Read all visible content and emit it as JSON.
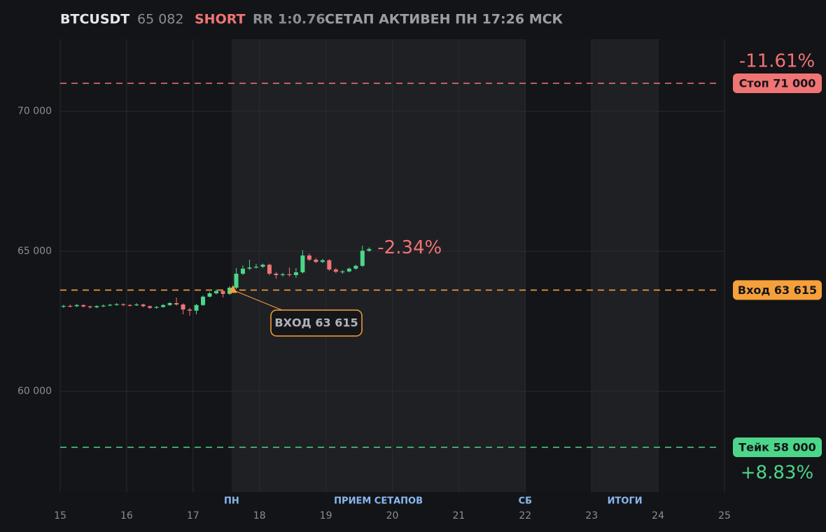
{
  "chart_data": {
    "type": "candlestick",
    "header": {
      "symbol": "BTCUSDT",
      "price": "65 082",
      "side": "SHORT",
      "rr": "RR 1:0.76",
      "status": "СЕТАП АКТИВЕН ПН 17:26 МСК"
    },
    "x": [
      15.05,
      15.15,
      15.25,
      15.35,
      15.45,
      15.55,
      15.65,
      15.75,
      15.85,
      15.95,
      16.05,
      16.15,
      16.25,
      16.35,
      16.45,
      16.55,
      16.65,
      16.75,
      16.85,
      16.95,
      17.05,
      17.15,
      17.25,
      17.35,
      17.45,
      17.55,
      17.65,
      17.75,
      17.85,
      17.95,
      18.05,
      18.15,
      18.25,
      18.35,
      18.45,
      18.55,
      18.65,
      18.75,
      18.85,
      18.95,
      19.05,
      19.15,
      19.25,
      19.35,
      19.45,
      19.55,
      19.65
    ],
    "open": [
      63020,
      63050,
      63040,
      63080,
      63030,
      63000,
      63040,
      63060,
      63090,
      63110,
      63080,
      63070,
      63100,
      63040,
      62980,
      63010,
      63080,
      63150,
      63100,
      62920,
      62880,
      63080,
      63380,
      63500,
      63580,
      63480,
      63700,
      64200,
      64380,
      64420,
      64450,
      64520,
      64200,
      64150,
      64180,
      64150,
      64250,
      64850,
      64700,
      64620,
      64680,
      64350,
      64270,
      64280,
      64380,
      64480,
      65020
    ],
    "high": [
      63090,
      63100,
      63120,
      63100,
      63060,
      63070,
      63100,
      63130,
      63150,
      63140,
      63120,
      63150,
      63130,
      63060,
      63050,
      63110,
      63180,
      63350,
      63140,
      62980,
      63120,
      63420,
      63560,
      63640,
      63620,
      63760,
      64400,
      64500,
      64700,
      64550,
      64560,
      64560,
      64260,
      64230,
      64420,
      64400,
      65040,
      64920,
      64760,
      64730,
      64720,
      64400,
      64330,
      64420,
      64520,
      65200,
      65140
    ],
    "low": [
      62980,
      63000,
      63010,
      62990,
      62950,
      62970,
      63010,
      63040,
      63060,
      63040,
      63030,
      63050,
      63000,
      62940,
      62950,
      62990,
      63050,
      63060,
      62750,
      62700,
      62750,
      63050,
      63350,
      63460,
      63350,
      63440,
      63650,
      64150,
      64330,
      64380,
      64400,
      64150,
      64020,
      64100,
      64100,
      64050,
      64200,
      64650,
      64580,
      64580,
      64300,
      64220,
      64200,
      64250,
      64340,
      64450,
      64980
    ],
    "close": [
      63050,
      63040,
      63080,
      63030,
      63000,
      63040,
      63060,
      63090,
      63110,
      63080,
      63070,
      63100,
      63040,
      62980,
      63010,
      63080,
      63150,
      63100,
      62920,
      62880,
      63080,
      63380,
      63500,
      63580,
      63480,
      63700,
      64200,
      64380,
      64420,
      64450,
      64520,
      64200,
      64150,
      64180,
      64150,
      64250,
      64850,
      64700,
      64620,
      64680,
      64350,
      64270,
      64280,
      64380,
      64480,
      65020,
      65082
    ],
    "up_color": "#4cd68a",
    "down_color": "#f07474",
    "xlim": [
      15,
      25
    ],
    "xticks": [
      15,
      16,
      17,
      18,
      19,
      20,
      21,
      22,
      23,
      24,
      25
    ],
    "ylim": [
      56400,
      72575
    ],
    "yticks": [
      {
        "value": 60000,
        "label": "60 000"
      },
      {
        "value": 65000,
        "label": "65 000"
      },
      {
        "value": 70000,
        "label": "70 000"
      }
    ],
    "grid": true,
    "shaded": [
      {
        "start": 17.58,
        "end": 22
      },
      {
        "start": 23,
        "end": 24
      }
    ],
    "sessions": [
      {
        "x": 17.58,
        "label": "ПН"
      },
      {
        "x": 19.79,
        "label": "ПРИЕМ СЕТАПОВ"
      },
      {
        "x": 22,
        "label": "СБ"
      },
      {
        "x": 23.5,
        "label": "ИТОГИ"
      }
    ],
    "levels": [
      {
        "value": 71000,
        "label": "Стоп 71 000",
        "change": "-11.61%",
        "color": "#f07474"
      },
      {
        "value": 63615,
        "label": "Вход 63 615",
        "color": "#f5a03a"
      },
      {
        "value": 58000,
        "label": "Тейк 58 000",
        "change": "+8.83%",
        "color": "#4cd68a"
      }
    ],
    "last_change": "-2.34%",
    "entry": {
      "x": 17.6,
      "value": 63615,
      "label": "ВХОД 63 615"
    }
  }
}
